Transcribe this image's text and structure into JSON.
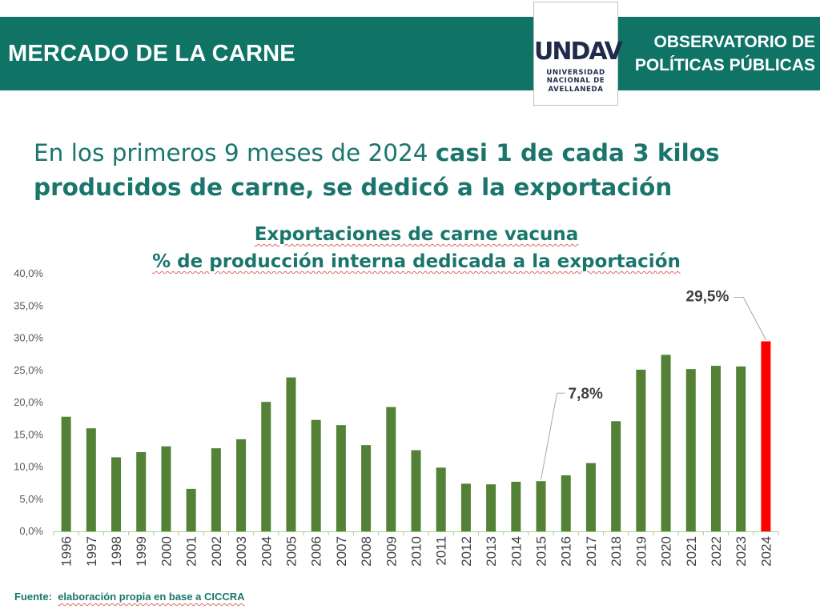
{
  "header": {
    "title": "MERCADO DE LA CARNE",
    "logo_mark": "UNDAV",
    "logo_lines": [
      "UNIVERSIDAD",
      "NACIONAL DE",
      "AVELLANEDA"
    ],
    "org_line1": "OBSERVATORIO DE",
    "org_line2": "POLÍTICAS PÚBLICAS"
  },
  "headline": {
    "part1": "En los primeros 9 meses de 2024 ",
    "part2_bold": "casi 1 de cada 3 kilos",
    "part3_bold": "producidos de carne, se dedicó a la exportación"
  },
  "source": {
    "label": "Fuente:",
    "text": "elaboración propia en base a CICCRA"
  },
  "colors": {
    "brand": "#0f7366",
    "bar": "#538135",
    "highlight": "#ff0000"
  },
  "chart_data": {
    "type": "bar",
    "title": "Exportaciones de carne vacuna",
    "subtitle": "% de producción interna dedicada a la exportación",
    "xlabel": "",
    "ylabel": "",
    "ylim": [
      0,
      40
    ],
    "y_ticks": [
      "0,0%",
      "5,0%",
      "10,0%",
      "15,0%",
      "20,0%",
      "25,0%",
      "30,0%",
      "35,0%",
      "40,0%"
    ],
    "categories": [
      "1996",
      "1997",
      "1998",
      "1999",
      "2000",
      "2001",
      "2002",
      "2003",
      "2004",
      "2005",
      "2006",
      "2007",
      "2008",
      "2009",
      "2010",
      "2011",
      "2012",
      "2013",
      "2014",
      "2015",
      "2016",
      "2017",
      "2018",
      "2019",
      "2020",
      "2021",
      "2022",
      "2023",
      "2024"
    ],
    "values": [
      17.8,
      16.0,
      11.5,
      12.3,
      13.2,
      6.6,
      12.9,
      14.3,
      20.1,
      23.9,
      17.3,
      16.5,
      13.4,
      19.3,
      12.6,
      9.9,
      7.4,
      7.3,
      7.7,
      7.8,
      8.7,
      10.6,
      17.1,
      25.1,
      27.4,
      25.2,
      25.7,
      25.6,
      29.5
    ],
    "highlight_index": 28,
    "annotations": [
      {
        "index": 19,
        "label": "7,8%"
      },
      {
        "index": 28,
        "label": "29,5%"
      }
    ],
    "grid": false,
    "legend": "none"
  }
}
